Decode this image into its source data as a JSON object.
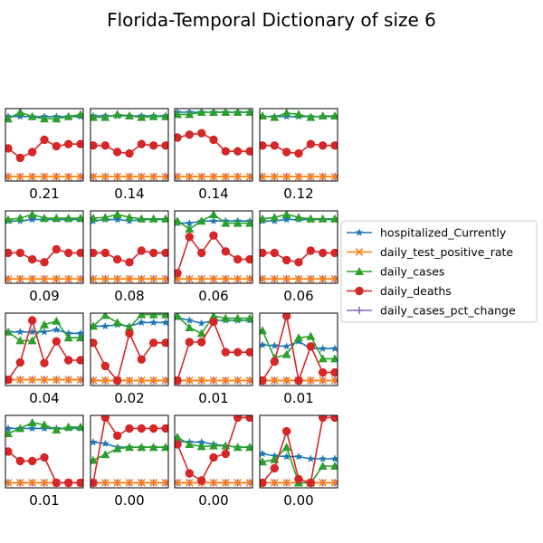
{
  "title": "Florida-Temporal Dictionary of size 6",
  "legend": {
    "placement": "right",
    "entries": [
      {
        "name": "hospitalized_Currently",
        "color": "#1f77b4",
        "marker": "star"
      },
      {
        "name": "daily_test_positive_rate",
        "color": "#ff7f0e",
        "marker": "x"
      },
      {
        "name": "daily_cases",
        "color": "#2ca02c",
        "marker": "triangle"
      },
      {
        "name": "daily_deaths",
        "color": "#d62728",
        "marker": "circle"
      },
      {
        "name": "daily_cases_pct_change",
        "color": "#9467bd",
        "marker": "plus"
      }
    ]
  },
  "chart_data": {
    "type": "line",
    "grid": false,
    "x": [
      0,
      1,
      2,
      3,
      4,
      5,
      6
    ],
    "ylim": [
      0,
      1
    ],
    "series_names": [
      "hospitalized_Currently",
      "daily_test_positive_rate",
      "daily_cases",
      "daily_deaths",
      "daily_cases_pct_change"
    ],
    "panels": [
      {
        "label": "0.21",
        "series": [
          [
            0.89,
            0.89,
            0.89,
            0.89,
            0.89,
            0.89,
            0.89
          ],
          [
            0.06,
            0.06,
            0.06,
            0.06,
            0.06,
            0.06,
            0.06
          ],
          [
            0.86,
            0.95,
            0.89,
            0.86,
            0.86,
            0.89,
            0.92
          ],
          [
            0.45,
            0.32,
            0.4,
            0.57,
            0.48,
            0.51,
            0.51
          ],
          [
            0.06,
            0.06,
            0.06,
            0.06,
            0.06,
            0.06,
            0.06
          ]
        ]
      },
      {
        "label": "0.14",
        "series": [
          [
            0.9,
            0.9,
            0.9,
            0.9,
            0.9,
            0.9,
            0.9
          ],
          [
            0.06,
            0.06,
            0.06,
            0.06,
            0.06,
            0.06,
            0.06
          ],
          [
            0.88,
            0.88,
            0.92,
            0.9,
            0.88,
            0.89,
            0.89
          ],
          [
            0.49,
            0.49,
            0.4,
            0.38,
            0.51,
            0.49,
            0.49
          ],
          [
            0.06,
            0.06,
            0.06,
            0.06,
            0.06,
            0.06,
            0.06
          ]
        ]
      },
      {
        "label": "0.14",
        "series": [
          [
            0.95,
            0.95,
            0.95,
            0.95,
            0.95,
            0.95,
            0.95
          ],
          [
            0.06,
            0.06,
            0.06,
            0.06,
            0.06,
            0.06,
            0.06
          ],
          [
            0.92,
            0.92,
            0.95,
            0.95,
            0.95,
            0.95,
            0.95
          ],
          [
            0.6,
            0.64,
            0.66,
            0.57,
            0.41,
            0.41,
            0.41
          ],
          [
            0.06,
            0.06,
            0.06,
            0.06,
            0.06,
            0.06,
            0.06
          ]
        ]
      },
      {
        "label": "0.12",
        "series": [
          [
            0.89,
            0.89,
            0.89,
            0.89,
            0.89,
            0.89,
            0.89
          ],
          [
            0.06,
            0.06,
            0.06,
            0.06,
            0.06,
            0.06,
            0.06
          ],
          [
            0.9,
            0.88,
            0.94,
            0.92,
            0.88,
            0.9,
            0.9
          ],
          [
            0.49,
            0.49,
            0.4,
            0.38,
            0.51,
            0.49,
            0.49
          ],
          [
            0.06,
            0.06,
            0.06,
            0.06,
            0.06,
            0.06,
            0.06
          ]
        ]
      },
      {
        "label": "0.09",
        "series": [
          [
            0.86,
            0.86,
            0.88,
            0.88,
            0.88,
            0.88,
            0.88
          ],
          [
            0.06,
            0.06,
            0.06,
            0.06,
            0.06,
            0.06,
            0.06
          ],
          [
            0.88,
            0.9,
            0.95,
            0.9,
            0.9,
            0.9,
            0.9
          ],
          [
            0.42,
            0.42,
            0.33,
            0.29,
            0.47,
            0.42,
            0.42
          ],
          [
            0.06,
            0.06,
            0.06,
            0.06,
            0.06,
            0.06,
            0.06
          ]
        ]
      },
      {
        "label": "0.08",
        "series": [
          [
            0.86,
            0.88,
            0.88,
            0.86,
            0.88,
            0.88,
            0.88
          ],
          [
            0.06,
            0.06,
            0.06,
            0.06,
            0.06,
            0.06,
            0.06
          ],
          [
            0.9,
            0.91,
            0.95,
            0.91,
            0.89,
            0.89,
            0.89
          ],
          [
            0.42,
            0.42,
            0.33,
            0.29,
            0.45,
            0.42,
            0.42
          ],
          [
            0.06,
            0.06,
            0.06,
            0.06,
            0.06,
            0.06,
            0.06
          ]
        ]
      },
      {
        "label": "0.06",
        "series": [
          [
            0.83,
            0.83,
            0.86,
            0.86,
            0.86,
            0.86,
            0.86
          ],
          [
            0.06,
            0.06,
            0.06,
            0.06,
            0.06,
            0.06,
            0.06
          ],
          [
            0.86,
            0.75,
            0.86,
            0.95,
            0.83,
            0.83,
            0.83
          ],
          [
            0.14,
            0.64,
            0.42,
            0.66,
            0.44,
            0.33,
            0.33
          ],
          [
            0.06,
            0.06,
            0.06,
            0.06,
            0.06,
            0.06,
            0.06
          ]
        ]
      },
      {
        "label": "0.06",
        "series": [
          [
            0.86,
            0.86,
            0.88,
            0.88,
            0.88,
            0.88,
            0.88
          ],
          [
            0.06,
            0.06,
            0.06,
            0.06,
            0.06,
            0.06,
            0.06
          ],
          [
            0.89,
            0.91,
            0.95,
            0.91,
            0.89,
            0.89,
            0.89
          ],
          [
            0.42,
            0.42,
            0.32,
            0.29,
            0.45,
            0.42,
            0.42
          ],
          [
            0.06,
            0.06,
            0.06,
            0.06,
            0.06,
            0.06,
            0.06
          ]
        ]
      },
      {
        "label": "0.04",
        "series": [
          [
            0.74,
            0.74,
            0.74,
            0.74,
            0.77,
            0.72,
            0.72
          ],
          [
            0.08,
            0.08,
            0.08,
            0.08,
            0.08,
            0.08,
            0.08
          ],
          [
            0.74,
            0.62,
            0.62,
            0.84,
            0.89,
            0.66,
            0.66
          ],
          [
            0.08,
            0.32,
            0.9,
            0.31,
            0.61,
            0.35,
            0.35
          ],
          [
            0.08,
            0.08,
            0.08,
            0.08,
            0.08,
            0.08,
            0.08
          ]
        ]
      },
      {
        "label": "0.02",
        "series": [
          [
            0.82,
            0.82,
            0.84,
            0.82,
            0.87,
            0.87,
            0.87
          ],
          [
            0.07,
            0.07,
            0.07,
            0.07,
            0.07,
            0.07,
            0.07
          ],
          [
            0.82,
            0.97,
            0.87,
            0.8,
            0.98,
            0.98,
            0.98
          ],
          [
            0.59,
            0.27,
            0.07,
            0.72,
            0.36,
            0.59,
            0.59
          ],
          [
            0.07,
            0.07,
            0.07,
            0.07,
            0.07,
            0.07,
            0.07
          ]
        ]
      },
      {
        "label": "0.01",
        "series": [
          [
            0.94,
            0.9,
            0.86,
            0.9,
            0.9,
            0.9,
            0.9
          ],
          [
            0.07,
            0.07,
            0.07,
            0.07,
            0.07,
            0.07,
            0.07
          ],
          [
            0.96,
            0.8,
            0.72,
            0.96,
            0.93,
            0.93,
            0.93
          ],
          [
            0.07,
            0.6,
            0.6,
            0.88,
            0.46,
            0.46,
            0.46
          ],
          [
            0.07,
            0.07,
            0.07,
            0.07,
            0.07,
            0.07,
            0.07
          ]
        ]
      },
      {
        "label": "0.01",
        "series": [
          [
            0.56,
            0.55,
            0.54,
            0.61,
            0.51,
            0.51,
            0.51
          ],
          [
            0.07,
            0.07,
            0.07,
            0.07,
            0.07,
            0.07,
            0.07
          ],
          [
            0.76,
            0.38,
            0.43,
            0.66,
            0.68,
            0.37,
            0.37
          ],
          [
            0.07,
            0.33,
            0.96,
            0.07,
            0.54,
            0.18,
            0.18
          ],
          [
            0.07,
            0.07,
            0.07,
            0.07,
            0.07,
            0.07,
            0.07
          ]
        ]
      },
      {
        "label": "0.01",
        "series": [
          [
            0.82,
            0.82,
            0.82,
            0.82,
            0.82,
            0.82,
            0.82
          ],
          [
            0.07,
            0.07,
            0.07,
            0.07,
            0.07,
            0.07,
            0.07
          ],
          [
            0.75,
            0.82,
            0.9,
            0.87,
            0.8,
            0.84,
            0.84
          ],
          [
            0.5,
            0.37,
            0.37,
            0.42,
            0.07,
            0.07,
            0.07
          ],
          [
            0.07,
            0.07,
            0.07,
            0.07,
            0.07,
            0.07,
            0.07
          ]
        ]
      },
      {
        "label": "0.00",
        "series": [
          [
            0.63,
            0.61,
            0.56,
            0.56,
            0.56,
            0.56,
            0.56
          ],
          [
            0.07,
            0.07,
            0.07,
            0.07,
            0.07,
            0.07,
            0.07
          ],
          [
            0.38,
            0.46,
            0.54,
            0.56,
            0.56,
            0.56,
            0.56
          ],
          [
            0.07,
            0.97,
            0.72,
            0.82,
            0.82,
            0.82,
            0.82
          ],
          [
            0.07,
            0.07,
            0.07,
            0.07,
            0.07,
            0.07,
            0.07
          ]
        ]
      },
      {
        "label": "0.00",
        "series": [
          [
            0.64,
            0.63,
            0.63,
            0.6,
            0.58,
            0.56,
            0.56
          ],
          [
            0.07,
            0.07,
            0.07,
            0.07,
            0.07,
            0.07,
            0.07
          ],
          [
            0.7,
            0.6,
            0.57,
            0.58,
            0.58,
            0.56,
            0.56
          ],
          [
            0.6,
            0.2,
            0.1,
            0.42,
            0.47,
            0.97,
            0.97
          ],
          [
            0.07,
            0.07,
            0.07,
            0.07,
            0.07,
            0.07,
            0.07
          ]
        ]
      },
      {
        "label": "0.00",
        "series": [
          [
            0.47,
            0.44,
            0.43,
            0.43,
            0.4,
            0.4,
            0.4
          ],
          [
            0.07,
            0.07,
            0.07,
            0.07,
            0.07,
            0.07,
            0.07
          ],
          [
            0.36,
            0.39,
            0.56,
            0.07,
            0.07,
            0.3,
            0.3
          ],
          [
            0.07,
            0.27,
            0.78,
            0.12,
            0.07,
            0.97,
            0.97
          ],
          [
            0.07,
            0.07,
            0.07,
            0.07,
            0.07,
            0.07,
            0.07
          ]
        ]
      }
    ]
  }
}
